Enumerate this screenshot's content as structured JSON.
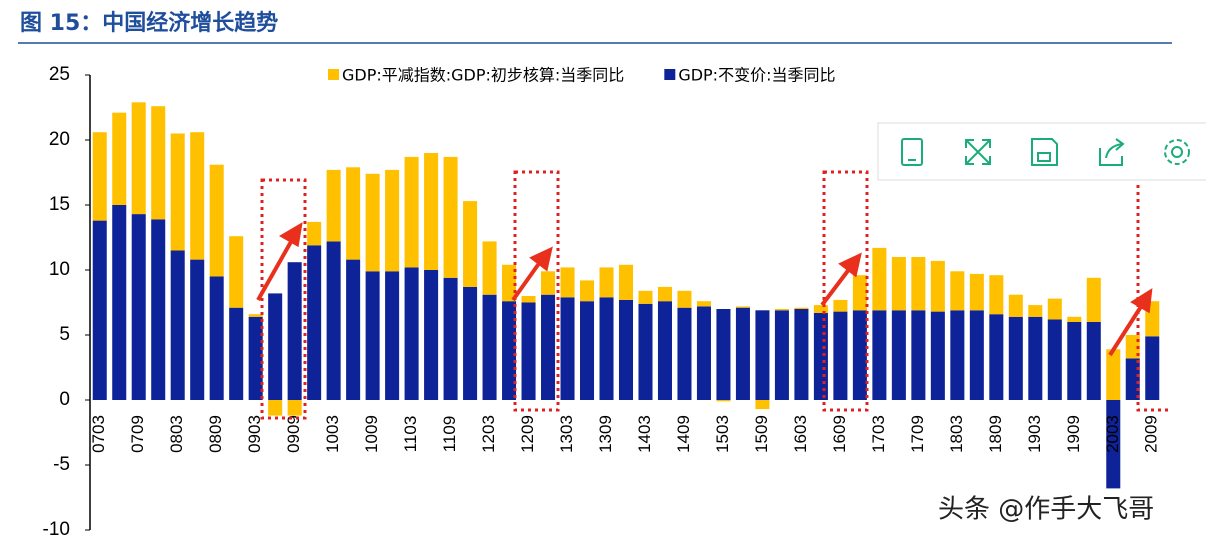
{
  "chart_data": {
    "type": "bar",
    "stacked": true,
    "title": "图 15：中国经济增长趋势",
    "categories": [
      "0703",
      null,
      "0709",
      null,
      "0803",
      null,
      "0809",
      null,
      "0903",
      null,
      "0909",
      null,
      "1003",
      null,
      "1009",
      null,
      "1103",
      null,
      "1109",
      null,
      "1203",
      null,
      "1209",
      null,
      "1303",
      null,
      "1309",
      null,
      "1403",
      null,
      "1409",
      null,
      "1503",
      null,
      "1509",
      null,
      "1603",
      null,
      "1609",
      null,
      "1703",
      null,
      "1709",
      null,
      "1803",
      null,
      "1809",
      null,
      "1903",
      null,
      "1909",
      null,
      "2003",
      null,
      "2009"
    ],
    "series": [
      {
        "name": "GDP:不变价:当季同比",
        "color": "#0f2399",
        "values": [
          13.8,
          15.0,
          14.3,
          13.9,
          11.5,
          10.8,
          9.5,
          7.1,
          6.4,
          8.2,
          10.6,
          11.9,
          12.2,
          10.8,
          9.9,
          9.9,
          10.2,
          10.0,
          9.4,
          8.7,
          8.1,
          7.6,
          7.5,
          8.1,
          7.9,
          7.6,
          7.9,
          7.7,
          7.4,
          7.6,
          7.1,
          7.2,
          7.0,
          7.1,
          6.9,
          6.9,
          7.0,
          6.7,
          6.8,
          6.9,
          6.9,
          6.9,
          6.9,
          6.8,
          6.9,
          6.9,
          6.6,
          6.4,
          6.4,
          6.2,
          6.0,
          6.0,
          -6.8,
          3.2,
          4.9
        ]
      },
      {
        "name": "GDP:平减指数:GDP:初步核算:当季同比",
        "color": "#ffc000",
        "values": [
          6.8,
          7.1,
          8.6,
          8.7,
          9.0,
          9.8,
          8.6,
          5.5,
          0.2,
          -1.2,
          -1.2,
          1.8,
          5.5,
          7.1,
          7.5,
          7.8,
          8.5,
          9.0,
          9.3,
          6.6,
          4.1,
          2.8,
          0.5,
          1.8,
          2.3,
          1.6,
          2.3,
          2.7,
          1.0,
          1.1,
          1.3,
          0.4,
          -0.1,
          0.1,
          -0.7,
          0.1,
          0.1,
          0.6,
          0.9,
          2.7,
          4.8,
          4.1,
          4.1,
          3.9,
          3.0,
          2.8,
          3.0,
          1.7,
          0.9,
          1.6,
          0.4,
          3.4,
          3.9,
          1.8,
          2.7
        ]
      }
    ],
    "legend_order": [
      1,
      0
    ],
    "ylim": [
      -10,
      25
    ],
    "yticks": [
      -10,
      -5,
      0,
      5,
      10,
      15,
      20,
      25
    ],
    "grid": false
  },
  "watermark": "头条 @作手大飞哥"
}
